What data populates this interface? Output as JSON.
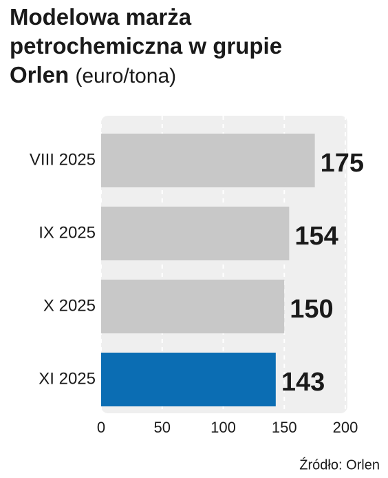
{
  "chart_data": {
    "type": "barh",
    "title": "Modelowa marża petrochemiczna w grupie Orlen",
    "subtitle": "(euro/tona)",
    "categories": [
      "VIII 2025",
      "IX 2025",
      "X 2025",
      "XI 2025"
    ],
    "values": [
      175,
      154,
      150,
      143
    ],
    "colors": [
      "#c8c8c8",
      "#c8c8c8",
      "#c8c8c8",
      "#0b6db3"
    ],
    "xlim": [
      0,
      200
    ],
    "xticks": [
      0,
      50,
      100,
      150,
      200
    ],
    "grid": true,
    "source": "Źródło: Orlen"
  }
}
